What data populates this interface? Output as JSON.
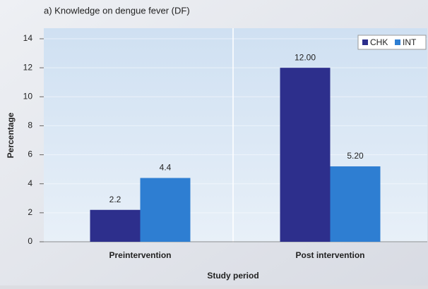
{
  "chart_data": {
    "type": "bar",
    "title": "a) Knowledge on dengue fever (DF)",
    "xlabel": "Study period",
    "ylabel": "Percentage",
    "categories": [
      "Preintervention",
      "Post intervention"
    ],
    "series": [
      {
        "name": "CHK",
        "color": "#2d2f8c",
        "values": [
          2.2,
          12.0
        ],
        "value_labels": [
          "2.2",
          "12.00"
        ]
      },
      {
        "name": "INT",
        "color": "#2e7ed2",
        "values": [
          4.4,
          5.2
        ],
        "value_labels": [
          "4.4",
          "5.20"
        ]
      }
    ],
    "ylim": [
      0,
      14
    ],
    "yticks": [
      0,
      2,
      4,
      6,
      8,
      10,
      12,
      14
    ],
    "grid": true,
    "legend": "top-right"
  }
}
